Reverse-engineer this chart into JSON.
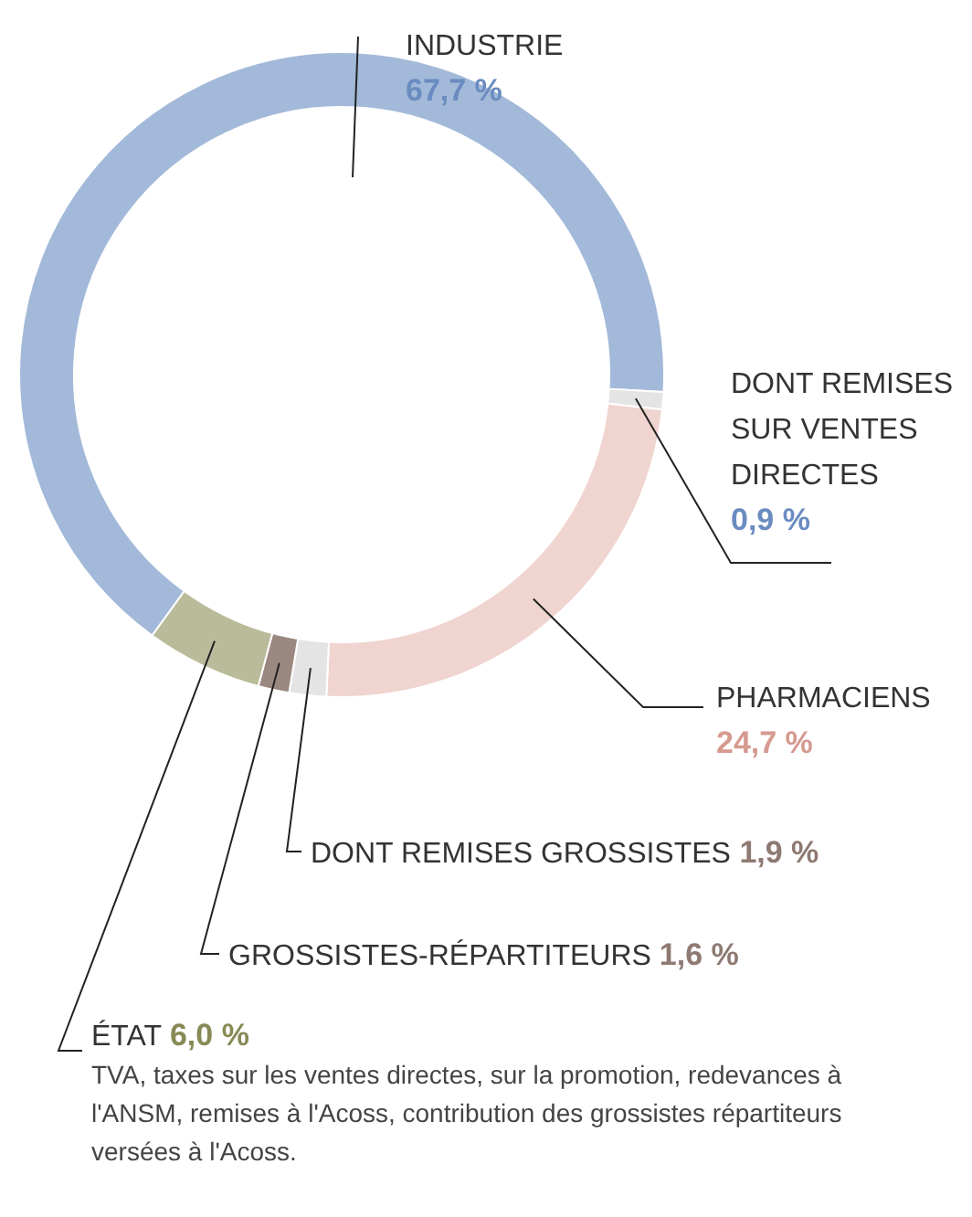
{
  "chart_data": {
    "type": "donut",
    "categories": [
      "INDUSTRIE",
      "DONT REMISES SUR VENTES DIRECTES",
      "PHARMACIENS",
      "DONT REMISES GROSSISTES",
      "GROSSISTES-RÉPARTITEURS",
      "ÉTAT"
    ],
    "values": [
      67.7,
      0.9,
      24.7,
      1.9,
      1.6,
      6.0
    ],
    "value_labels": [
      "67,7 %",
      "0,9 %",
      "24,7 %",
      "1,9 %",
      "1,6 %",
      "6,0 %"
    ],
    "colors": [
      "#a3b9d9",
      "#e4e4e4",
      "#f0d4cf",
      "#e4e4e4",
      "#9b8880",
      "#b9bb9a"
    ],
    "annotations": [
      "TVA, taxes sur les ventes directes, sur la promotion, redevances à l'ANSM, remises à l'Acoss, contribution des grossistes répartiteurs versées à l'Acoss."
    ],
    "legend": false
  }
}
